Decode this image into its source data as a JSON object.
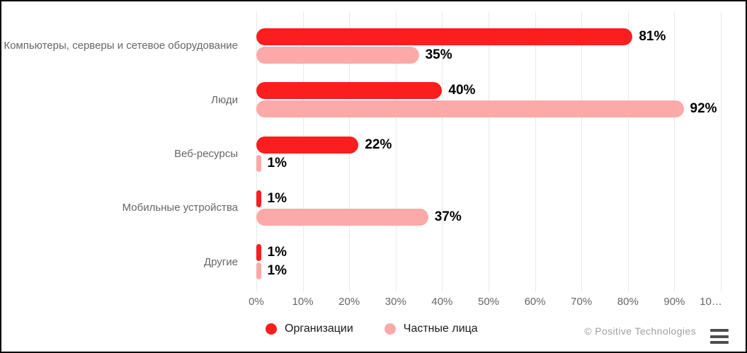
{
  "page": {
    "credits": "© Positive Technologies"
  },
  "colors": {
    "series_organizations": "#FA1E1E",
    "series_individuals": "#FCA9A9",
    "gridline": "#E9E9E9",
    "category_text": "#666666",
    "value_text": "#000000",
    "credits_text": "#9E9E9E"
  },
  "chart_data": {
    "type": "bar",
    "orientation": "horizontal",
    "title": "",
    "categories": [
      "Компьютеры, серверы и сетевое оборудование",
      "Люди",
      "Веб-ресурсы",
      "Мобильные устройства",
      "Другие"
    ],
    "series": [
      {
        "name": "Организации",
        "color": "#FA1E1E",
        "values": [
          81,
          40,
          22,
          1,
          1
        ]
      },
      {
        "name": "Частные лица",
        "color": "#FCA9A9",
        "values": [
          35,
          92,
          1,
          37,
          1
        ]
      }
    ],
    "value_suffix": "%",
    "xlim": [
      0,
      100
    ],
    "x_ticks": [
      {
        "value": 0,
        "label": "0%"
      },
      {
        "value": 10,
        "label": "10%"
      },
      {
        "value": 20,
        "label": "20%"
      },
      {
        "value": 30,
        "label": "30%"
      },
      {
        "value": 40,
        "label": "40%"
      },
      {
        "value": 50,
        "label": "50%"
      },
      {
        "value": 60,
        "label": "60%"
      },
      {
        "value": 70,
        "label": "70%"
      },
      {
        "value": 80,
        "label": "80%"
      },
      {
        "value": 90,
        "label": "90%"
      },
      {
        "value": 100,
        "label": "10…"
      }
    ],
    "grid": true,
    "legend_position": "bottom",
    "data_labels": true
  }
}
